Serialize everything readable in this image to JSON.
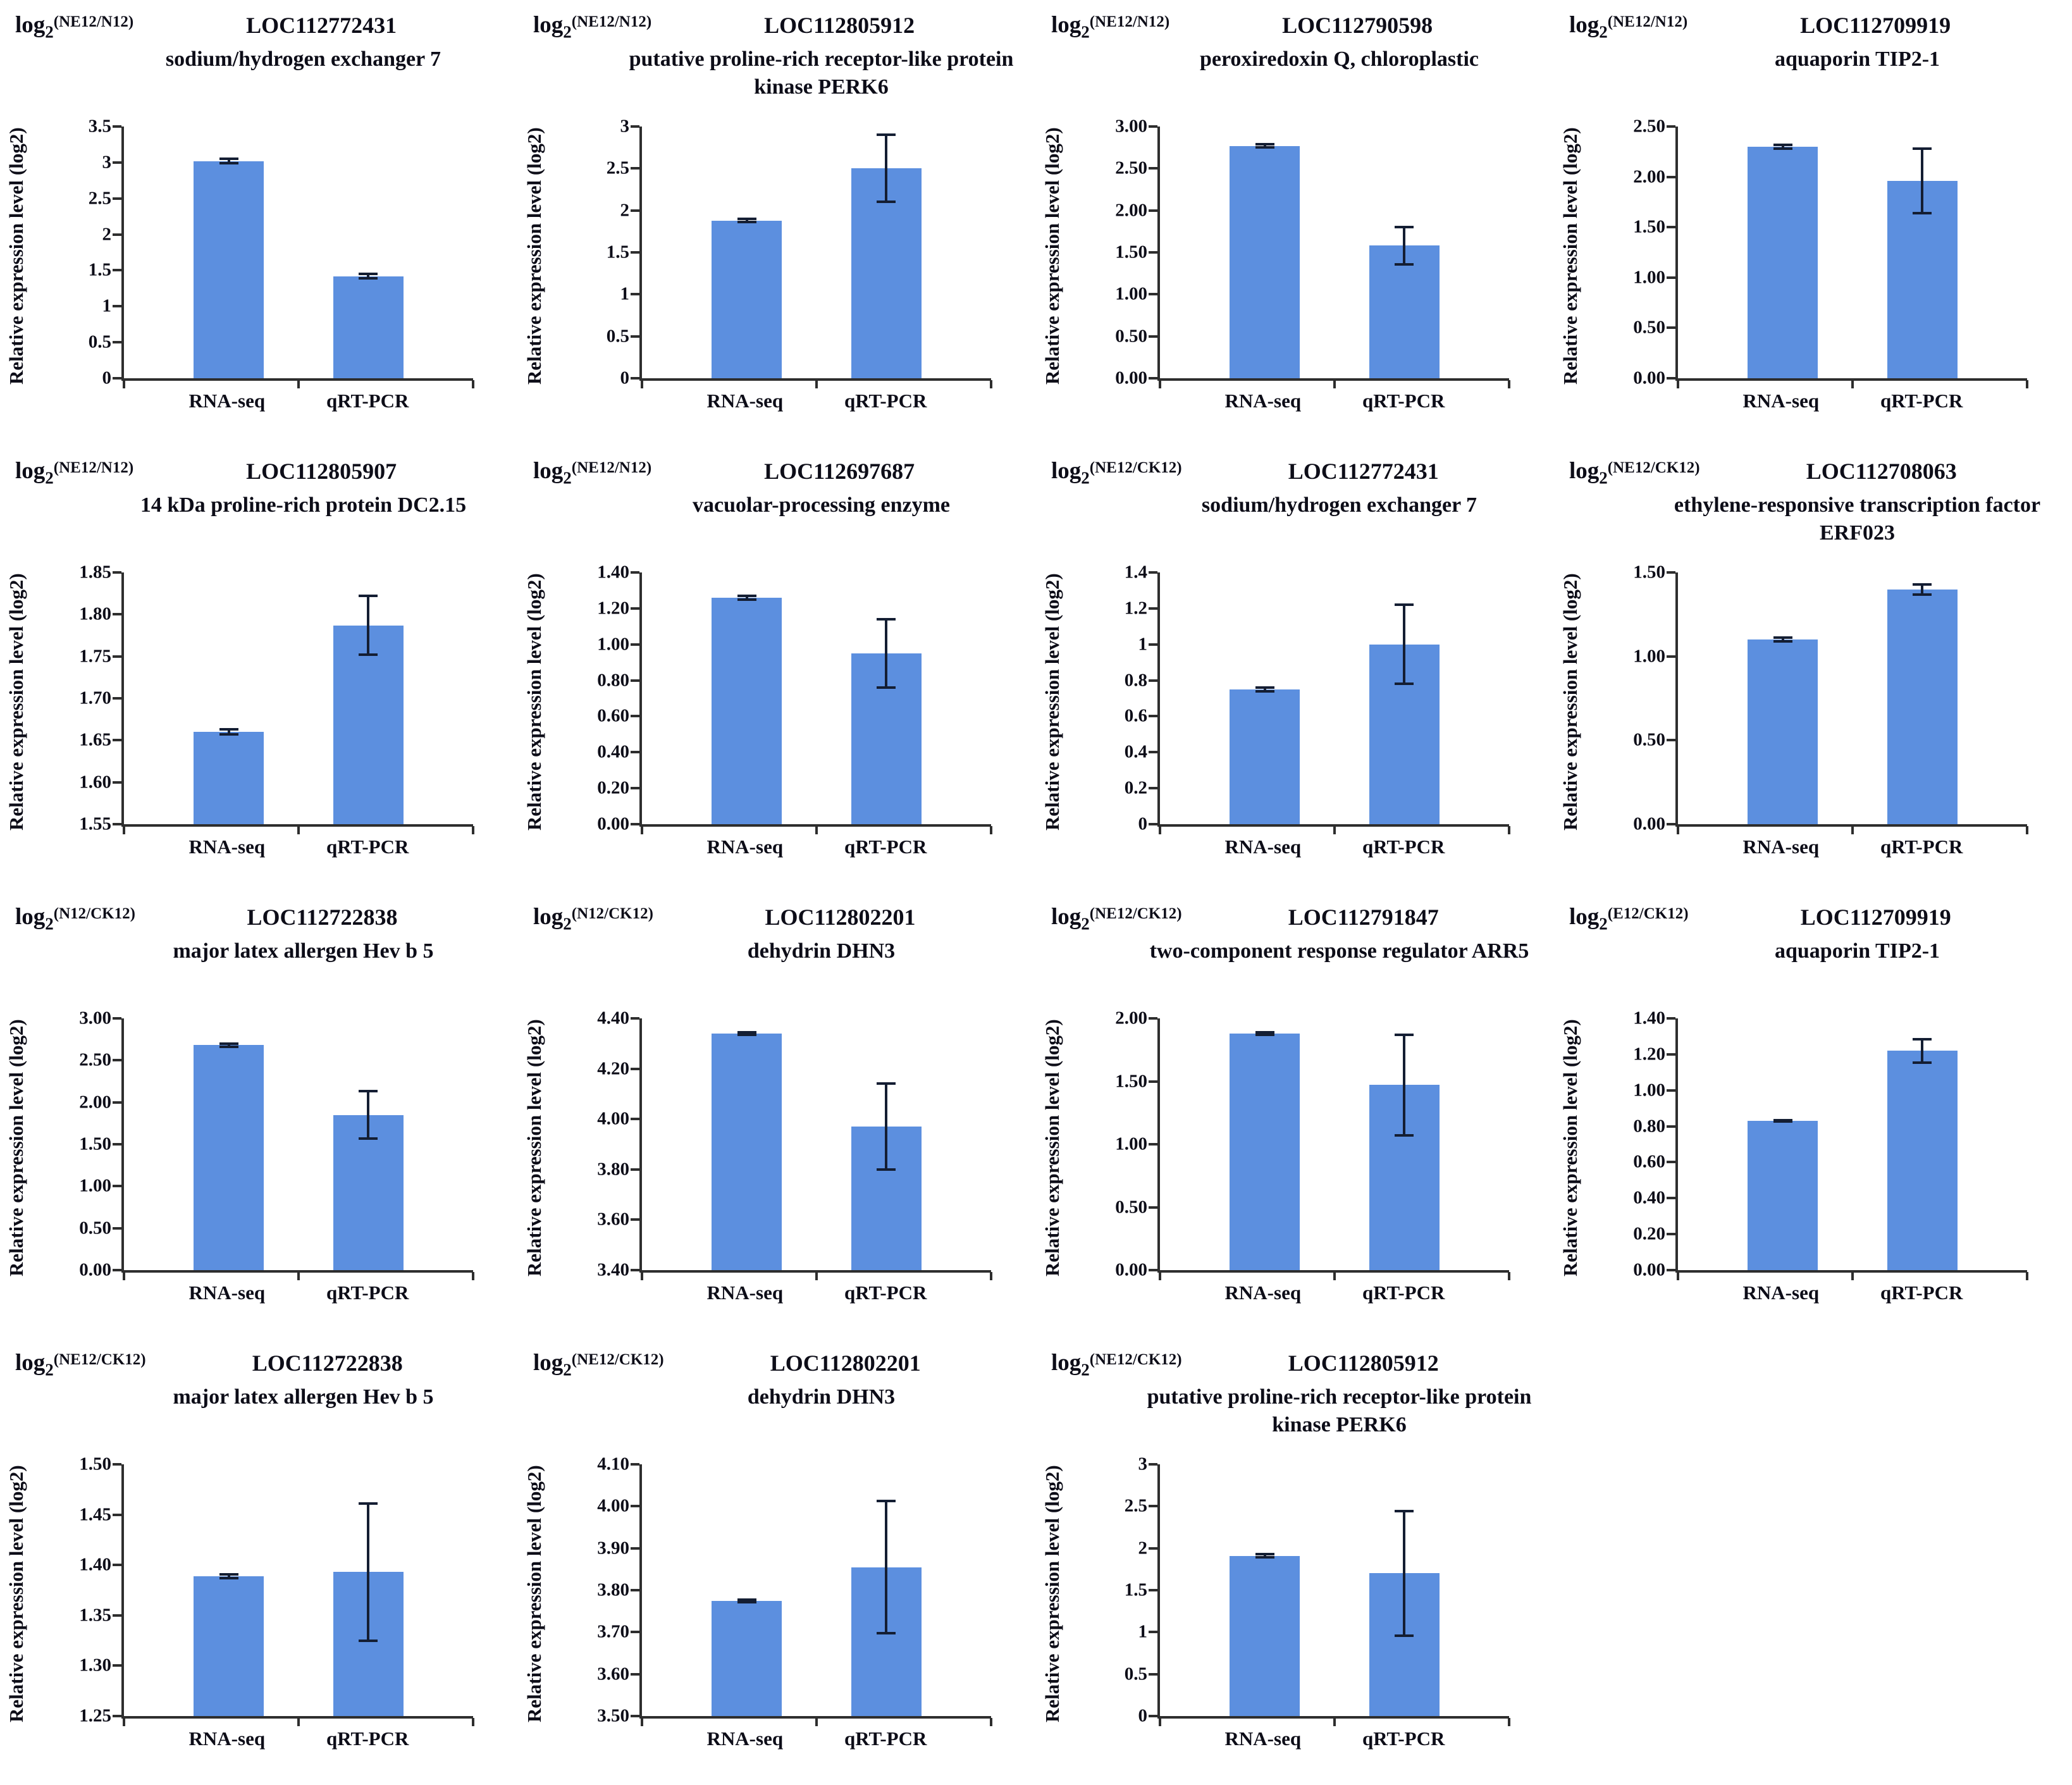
{
  "figure": {
    "ylabel": "Relative expression level (log2)",
    "categories": [
      "RNA-seq",
      "qRT-PCR"
    ],
    "log_label": "log",
    "log_sub": "2",
    "bar_color": "#5C8FDF",
    "error_color": "#141E33",
    "axis_color": "#2E2E2E"
  },
  "chart_data": [
    {
      "type": "bar",
      "ratio": "(NE12/N12)",
      "gene_id": "LOC112772431",
      "gene_name": "sodium/hydrogen exchanger 7",
      "ylim": [
        0,
        3.5
      ],
      "yticks": [
        "3.5",
        "3",
        "2.5",
        "2",
        "1.5",
        "1",
        "0.5",
        "0"
      ],
      "values": [
        3.02,
        1.42
      ],
      "errors": [
        0.03,
        0.03
      ]
    },
    {
      "type": "bar",
      "ratio": "(NE12/N12)",
      "gene_id": "LOC112805912",
      "gene_name": "putative proline-rich receptor-like protein kinase PERK6",
      "ylim": [
        0,
        3
      ],
      "yticks": [
        "3",
        "2.5",
        "2",
        "1.5",
        "1",
        "0.5",
        "0"
      ],
      "values": [
        1.88,
        2.5
      ],
      "errors": [
        0.02,
        0.4
      ]
    },
    {
      "type": "bar",
      "ratio": "(NE12/N12)",
      "gene_id": "LOC112790598",
      "gene_name": "peroxiredoxin Q, chloroplastic",
      "ylim": [
        0,
        3
      ],
      "yticks": [
        "3.00",
        "2.50",
        "2.00",
        "1.50",
        "1.00",
        "0.50",
        "0.00"
      ],
      "values": [
        2.77,
        1.58
      ],
      "errors": [
        0.02,
        0.22
      ]
    },
    {
      "type": "bar",
      "ratio": "(NE12/N12)",
      "gene_id": "LOC112709919",
      "gene_name": "aquaporin TIP2-1",
      "ylim": [
        0,
        2.5
      ],
      "yticks": [
        "2.50",
        "2.00",
        "1.50",
        "1.00",
        "0.50",
        "0.00"
      ],
      "values": [
        2.3,
        1.96
      ],
      "errors": [
        0.02,
        0.32
      ]
    },
    {
      "type": "bar",
      "ratio": "(NE12/N12)",
      "gene_id": "LOC112805907",
      "gene_name": "14 kDa proline-rich protein DC2.15",
      "ylim": [
        1.55,
        1.85
      ],
      "yticks": [
        "1.85",
        "1.80",
        "1.75",
        "1.70",
        "1.65",
        "1.60",
        "1.55"
      ],
      "values": [
        1.66,
        1.787
      ],
      "errors": [
        0.003,
        0.035
      ]
    },
    {
      "type": "bar",
      "ratio": "(NE12/N12)",
      "gene_id": "LOC112697687",
      "gene_name": "vacuolar-processing enzyme",
      "ylim": [
        0,
        1.4
      ],
      "yticks": [
        "1.40",
        "1.20",
        "1.00",
        "0.80",
        "0.60",
        "0.40",
        "0.20",
        "0.00"
      ],
      "values": [
        1.26,
        0.95
      ],
      "errors": [
        0.01,
        0.19
      ]
    },
    {
      "type": "bar",
      "ratio": "(NE12/CK12)",
      "gene_id": "LOC112772431",
      "gene_name": "sodium/hydrogen exchanger 7",
      "ylim": [
        0,
        1.4
      ],
      "yticks": [
        "1.4",
        "1.2",
        "1",
        "0.8",
        "0.6",
        "0.4",
        "0.2",
        "0"
      ],
      "values": [
        0.75,
        1.0
      ],
      "errors": [
        0.01,
        0.22
      ]
    },
    {
      "type": "bar",
      "ratio": "(NE12/CK12)",
      "gene_id": "LOC112708063",
      "gene_name": "ethylene-responsive transcription factor ERF023",
      "ylim": [
        0,
        1.5
      ],
      "yticks": [
        "1.50",
        "1.00",
        "0.50",
        "0.00"
      ],
      "values": [
        1.1,
        1.4
      ],
      "errors": [
        0.01,
        0.03
      ]
    },
    {
      "type": "bar",
      "ratio": "(N12/CK12)",
      "gene_id": "LOC112722838",
      "gene_name": "major latex allergen Hev b 5",
      "ylim": [
        0,
        3
      ],
      "yticks": [
        "3.00",
        "2.50",
        "2.00",
        "1.50",
        "1.00",
        "0.50",
        "0.00"
      ],
      "values": [
        2.68,
        1.85
      ],
      "errors": [
        0.02,
        0.28
      ]
    },
    {
      "type": "bar",
      "ratio": "(N12/CK12)",
      "gene_id": "LOC112802201",
      "gene_name": "dehydrin DHN3",
      "ylim": [
        3.4,
        4.4
      ],
      "yticks": [
        "4.40",
        "4.20",
        "4.00",
        "3.80",
        "3.60",
        "3.40"
      ],
      "values": [
        4.34,
        3.97
      ],
      "errors": [
        0.005,
        0.17
      ]
    },
    {
      "type": "bar",
      "ratio": "(NE12/CK12)",
      "gene_id": "LOC112791847",
      "gene_name": "two-component response regulator ARR5",
      "ylim": [
        0,
        2
      ],
      "yticks": [
        "2.00",
        "1.50",
        "1.00",
        "0.50",
        "0.00"
      ],
      "values": [
        1.88,
        1.47
      ],
      "errors": [
        0.01,
        0.4
      ]
    },
    {
      "type": "bar",
      "ratio": "(E12/CK12)",
      "gene_id": "LOC112709919",
      "gene_name": "aquaporin TIP2-1",
      "ylim": [
        0,
        1.4
      ],
      "yticks": [
        "1.40",
        "1.20",
        "1.00",
        "0.80",
        "0.60",
        "0.40",
        "0.20",
        "0.00"
      ],
      "values": [
        0.83,
        1.22
      ],
      "errors": [
        0.005,
        0.065
      ]
    },
    {
      "type": "bar",
      "ratio": "(NE12/CK12)",
      "gene_id": "LOC112722838",
      "gene_name": "major latex allergen Hev b 5",
      "ylim": [
        1.25,
        1.5
      ],
      "yticks": [
        "1.50",
        "1.45",
        "1.40",
        "1.35",
        "1.30",
        "1.25"
      ],
      "values": [
        1.389,
        1.393
      ],
      "errors": [
        0.002,
        0.068
      ]
    },
    {
      "type": "bar",
      "ratio": "(NE12/CK12)",
      "gene_id": "LOC112802201",
      "gene_name": "dehydrin DHN3",
      "ylim": [
        3.5,
        4.1
      ],
      "yticks": [
        "4.10",
        "4.00",
        "3.90",
        "3.80",
        "3.70",
        "3.60",
        "3.50"
      ],
      "values": [
        3.775,
        3.855
      ],
      "errors": [
        0.003,
        0.157
      ]
    },
    {
      "type": "bar",
      "ratio": "(NE12/CK12)",
      "gene_id": "LOC112805912",
      "gene_name": "putative proline-rich receptor-like protein kinase PERK6",
      "ylim": [
        0,
        3
      ],
      "yticks": [
        "3",
        "2.5",
        "2",
        "1.5",
        "1",
        "0.5",
        "0"
      ],
      "values": [
        1.91,
        1.7
      ],
      "errors": [
        0.02,
        0.74
      ]
    }
  ]
}
